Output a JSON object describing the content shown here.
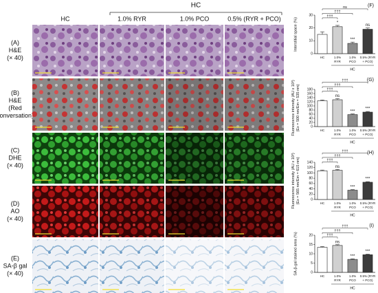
{
  "figure": {
    "group_label": "HC",
    "columns": [
      "HC",
      "1.0% RYR",
      "1.0% PCO",
      "0.5% (RYR + PCO)"
    ],
    "rows": [
      {
        "letter": "(A)",
        "lines": [
          "H&E",
          "(× 40)"
        ]
      },
      {
        "letter": "(B)",
        "lines": [
          "H&E",
          "(Red",
          "conversation)"
        ]
      },
      {
        "letter": "(C)",
        "lines": [
          "DHE",
          "(× 40)"
        ]
      },
      {
        "letter": "(D)",
        "lines": [
          "AO",
          "(× 40)"
        ]
      },
      {
        "letter": "(E)",
        "lines": [
          "SA-β gal",
          "(× 40)"
        ]
      }
    ]
  },
  "chart_data": [
    {
      "type": "bar",
      "panel": "(F)",
      "ylabel": [
        "Interstitial space (%)"
      ],
      "categories": [
        [
          "HC"
        ],
        [
          "1.0%",
          "RYR"
        ],
        [
          "1.0%",
          "PCO"
        ],
        [
          "0.5% (RYR",
          "+ PCO)"
        ]
      ],
      "group_label": "HC",
      "values": [
        15,
        21,
        8,
        19
      ],
      "errors": [
        2,
        1,
        1,
        1
      ],
      "colors": [
        "#ffffff",
        "#d0d0d0",
        "#8c8c8c",
        "#3c3c3c"
      ],
      "bar_labels": [
        null,
        "*",
        "***",
        "ns"
      ],
      "brackets": [
        "†††",
        "†††",
        "ns"
      ],
      "ylim": [
        0,
        30
      ],
      "yticks": [
        0,
        10,
        20,
        30
      ]
    },
    {
      "type": "bar",
      "panel": "(G)",
      "ylabel": [
        "Fluorescence intensity (AU x 10³)",
        "(Ex = 500 nm/Em = 535 nm)"
      ],
      "categories": [
        [
          "HC"
        ],
        [
          "1.0%",
          "RYR"
        ],
        [
          "1.0%",
          "PCO"
        ],
        [
          "0.5% (RYR",
          "+ PCO)"
        ]
      ],
      "group_label": "HC",
      "values": [
        125,
        130,
        58,
        70
      ],
      "errors": [
        4,
        5,
        3,
        3
      ],
      "colors": [
        "#ffffff",
        "#d0d0d0",
        "#8c8c8c",
        "#3c3c3c"
      ],
      "bar_labels": [
        null,
        "ns",
        "***",
        "***"
      ],
      "brackets": [
        "†††",
        "†††",
        "†††"
      ],
      "ylim": [
        0,
        180
      ],
      "yticks": [
        0,
        20,
        40,
        60,
        80,
        100,
        120,
        140,
        160,
        180
      ]
    },
    {
      "type": "bar",
      "panel": "(H)",
      "ylabel": [
        "Fluorescence intensity (AU x 10³)",
        "(Ex = 565 nm/Em = 615 nm)"
      ],
      "categories": [
        [
          "HC"
        ],
        [
          "1.0%",
          "RYR"
        ],
        [
          "1.0%",
          "PCO"
        ],
        [
          "0.5% (RYR",
          "+ PCO)"
        ]
      ],
      "group_label": "HC",
      "values": [
        108,
        110,
        35,
        65
      ],
      "errors": [
        3,
        3,
        2,
        2
      ],
      "colors": [
        "#ffffff",
        "#d0d0d0",
        "#8c8c8c",
        "#3c3c3c"
      ],
      "bar_labels": [
        null,
        "ns",
        "***",
        "***"
      ],
      "brackets": [
        "†††",
        "†††",
        "†††"
      ],
      "ylim": [
        0,
        140
      ],
      "yticks": [
        0,
        20,
        40,
        60,
        80,
        100,
        120,
        140
      ]
    },
    {
      "type": "bar",
      "panel": "(I)",
      "ylabel": [
        "SA-β-gal stained area (%)"
      ],
      "categories": [
        [
          "HC"
        ],
        [
          "1.0%",
          "RYR"
        ],
        [
          "1.0%",
          "PCO"
        ],
        [
          "0.5% (RYR",
          "+ PCO)"
        ]
      ],
      "group_label": "HC",
      "values": [
        13.5,
        14.5,
        7,
        9.5
      ],
      "errors": [
        0.4,
        0.4,
        0.3,
        0.3
      ],
      "colors": [
        "#ffffff",
        "#d0d0d0",
        "#8c8c8c",
        "#3c3c3c"
      ],
      "bar_labels": [
        null,
        "ns",
        "***",
        "***"
      ],
      "brackets": [
        "†††",
        "†††",
        "†††"
      ],
      "ylim": [
        0,
        20
      ],
      "yticks": [
        0,
        5,
        10,
        15,
        20
      ]
    }
  ]
}
